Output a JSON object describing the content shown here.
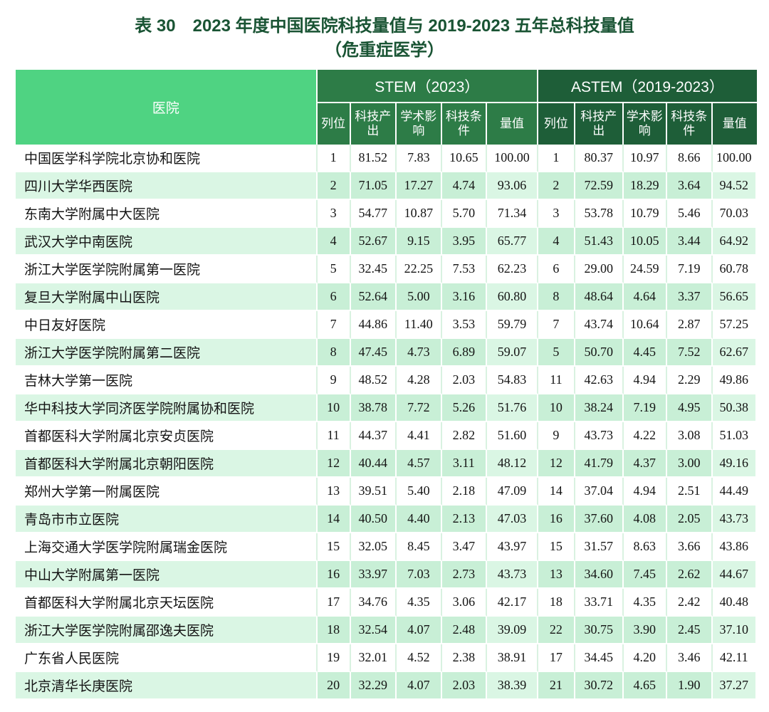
{
  "title": {
    "line1": "表 30　2023 年度中国医院科技量值与 2019-2023 五年总科技量值",
    "line2": "（危重症医学）"
  },
  "colors": {
    "title-green": "#1a5434",
    "hospital-header-green": "#4fd382",
    "stem-green": "#2d7c47",
    "astem-green": "#1e5e38",
    "mint": "#c8efd6",
    "mint-light": "#daf6e4",
    "grid-green": "#d9f2e1"
  },
  "table": {
    "hospital_header": "医院",
    "groups": {
      "stem": "STEM（2023）",
      "astem": "ASTEM（2019-2023）"
    },
    "subheaders": [
      "列位",
      "科技产出",
      "学术影响",
      "科技条件",
      "量值"
    ],
    "rows": [
      {
        "hospital": "中国医学科学院北京协和医院",
        "stem": [
          "1",
          "81.52",
          "7.83",
          "10.65",
          "100.00"
        ],
        "astem": [
          "1",
          "80.37",
          "10.97",
          "8.66",
          "100.00"
        ]
      },
      {
        "hospital": "四川大学华西医院",
        "stem": [
          "2",
          "71.05",
          "17.27",
          "4.74",
          "93.06"
        ],
        "astem": [
          "2",
          "72.59",
          "18.29",
          "3.64",
          "94.52"
        ]
      },
      {
        "hospital": "东南大学附属中大医院",
        "stem": [
          "3",
          "54.77",
          "10.87",
          "5.70",
          "71.34"
        ],
        "astem": [
          "3",
          "53.78",
          "10.79",
          "5.46",
          "70.03"
        ]
      },
      {
        "hospital": "武汉大学中南医院",
        "stem": [
          "4",
          "52.67",
          "9.15",
          "3.95",
          "65.77"
        ],
        "astem": [
          "4",
          "51.43",
          "10.05",
          "3.44",
          "64.92"
        ]
      },
      {
        "hospital": "浙江大学医学院附属第一医院",
        "stem": [
          "5",
          "32.45",
          "22.25",
          "7.53",
          "62.23"
        ],
        "astem": [
          "6",
          "29.00",
          "24.59",
          "7.19",
          "60.78"
        ]
      },
      {
        "hospital": "复旦大学附属中山医院",
        "stem": [
          "6",
          "52.64",
          "5.00",
          "3.16",
          "60.80"
        ],
        "astem": [
          "8",
          "48.64",
          "4.64",
          "3.37",
          "56.65"
        ]
      },
      {
        "hospital": "中日友好医院",
        "stem": [
          "7",
          "44.86",
          "11.40",
          "3.53",
          "59.79"
        ],
        "astem": [
          "7",
          "43.74",
          "10.64",
          "2.87",
          "57.25"
        ]
      },
      {
        "hospital": "浙江大学医学院附属第二医院",
        "stem": [
          "8",
          "47.45",
          "4.73",
          "6.89",
          "59.07"
        ],
        "astem": [
          "5",
          "50.70",
          "4.45",
          "7.52",
          "62.67"
        ]
      },
      {
        "hospital": "吉林大学第一医院",
        "stem": [
          "9",
          "48.52",
          "4.28",
          "2.03",
          "54.83"
        ],
        "astem": [
          "11",
          "42.63",
          "4.94",
          "2.29",
          "49.86"
        ]
      },
      {
        "hospital": "华中科技大学同济医学院附属协和医院",
        "stem": [
          "10",
          "38.78",
          "7.72",
          "5.26",
          "51.76"
        ],
        "astem": [
          "10",
          "38.24",
          "7.19",
          "4.95",
          "50.38"
        ]
      },
      {
        "hospital": "首都医科大学附属北京安贞医院",
        "stem": [
          "11",
          "44.37",
          "4.41",
          "2.82",
          "51.60"
        ],
        "astem": [
          "9",
          "43.73",
          "4.22",
          "3.08",
          "51.03"
        ]
      },
      {
        "hospital": "首都医科大学附属北京朝阳医院",
        "stem": [
          "12",
          "40.44",
          "4.57",
          "3.11",
          "48.12"
        ],
        "astem": [
          "12",
          "41.79",
          "4.37",
          "3.00",
          "49.16"
        ]
      },
      {
        "hospital": "郑州大学第一附属医院",
        "stem": [
          "13",
          "39.51",
          "5.40",
          "2.18",
          "47.09"
        ],
        "astem": [
          "14",
          "37.04",
          "4.94",
          "2.51",
          "44.49"
        ]
      },
      {
        "hospital": "青岛市市立医院",
        "stem": [
          "14",
          "40.50",
          "4.40",
          "2.13",
          "47.03"
        ],
        "astem": [
          "16",
          "37.60",
          "4.08",
          "2.05",
          "43.73"
        ]
      },
      {
        "hospital": "上海交通大学医学院附属瑞金医院",
        "stem": [
          "15",
          "32.05",
          "8.45",
          "3.47",
          "43.97"
        ],
        "astem": [
          "15",
          "31.57",
          "8.63",
          "3.66",
          "43.86"
        ]
      },
      {
        "hospital": "中山大学附属第一医院",
        "stem": [
          "16",
          "33.97",
          "7.03",
          "2.73",
          "43.73"
        ],
        "astem": [
          "13",
          "34.60",
          "7.45",
          "2.62",
          "44.67"
        ]
      },
      {
        "hospital": "首都医科大学附属北京天坛医院",
        "stem": [
          "17",
          "34.76",
          "4.35",
          "3.06",
          "42.17"
        ],
        "astem": [
          "18",
          "33.71",
          "4.35",
          "2.42",
          "40.48"
        ]
      },
      {
        "hospital": "浙江大学医学院附属邵逸夫医院",
        "stem": [
          "18",
          "32.54",
          "4.07",
          "2.48",
          "39.09"
        ],
        "astem": [
          "22",
          "30.75",
          "3.90",
          "2.45",
          "37.10"
        ]
      },
      {
        "hospital": "广东省人民医院",
        "stem": [
          "19",
          "32.01",
          "4.52",
          "2.38",
          "38.91"
        ],
        "astem": [
          "17",
          "34.45",
          "4.20",
          "3.46",
          "42.11"
        ]
      },
      {
        "hospital": "北京清华长庚医院",
        "stem": [
          "20",
          "32.29",
          "4.07",
          "2.03",
          "38.39"
        ],
        "astem": [
          "21",
          "30.72",
          "4.65",
          "1.90",
          "37.27"
        ]
      }
    ]
  }
}
